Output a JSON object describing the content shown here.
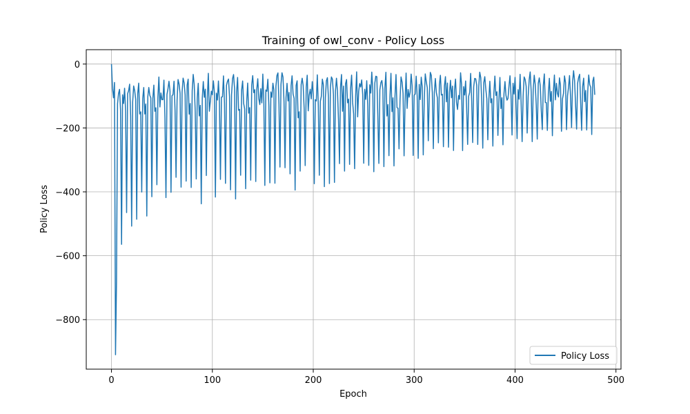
{
  "chart_data": {
    "type": "line",
    "title": "Training of owl_conv - Policy Loss",
    "xlabel": "Epoch",
    "ylabel": "Policy Loss",
    "xlim": [
      -25,
      505
    ],
    "ylim": [
      -955,
      45
    ],
    "x_ticks": [
      0,
      100,
      200,
      300,
      400,
      500
    ],
    "x_tick_labels": [
      "0",
      "100",
      "200",
      "300",
      "400",
      "500"
    ],
    "y_ticks": [
      0,
      -200,
      -400,
      -600,
      -800
    ],
    "y_tick_labels": [
      "0",
      "−200",
      "−400",
      "−600",
      "−800"
    ],
    "grid": true,
    "legend_position": "lower-right",
    "series": [
      {
        "name": "Policy Loss",
        "color": "#1f77b4",
        "generator": {
          "points": 480,
          "period_epochs": 4.9,
          "high_envelope": [
            [
              0,
              0
            ],
            [
              5,
              -60
            ],
            [
              20,
              -60
            ],
            [
              60,
              -30
            ],
            [
              200,
              -25
            ],
            [
              479,
              -20
            ]
          ],
          "low_envelope": [
            [
              0,
              -450
            ],
            [
              4,
              -910
            ],
            [
              8,
              -640
            ],
            [
              12,
              -600
            ],
            [
              20,
              -560
            ],
            [
              40,
              -500
            ],
            [
              60,
              -460
            ],
            [
              100,
              -430
            ],
            [
              150,
              -415
            ],
            [
              200,
              -395
            ],
            [
              250,
              -360
            ],
            [
              300,
              -300
            ],
            [
              350,
              -270
            ],
            [
              400,
              -255
            ],
            [
              450,
              -235
            ],
            [
              479,
              -225
            ]
          ],
          "mid_envelope": [
            [
              0,
              -150
            ],
            [
              100,
              -150
            ],
            [
              479,
              -130
            ]
          ]
        }
      }
    ]
  }
}
